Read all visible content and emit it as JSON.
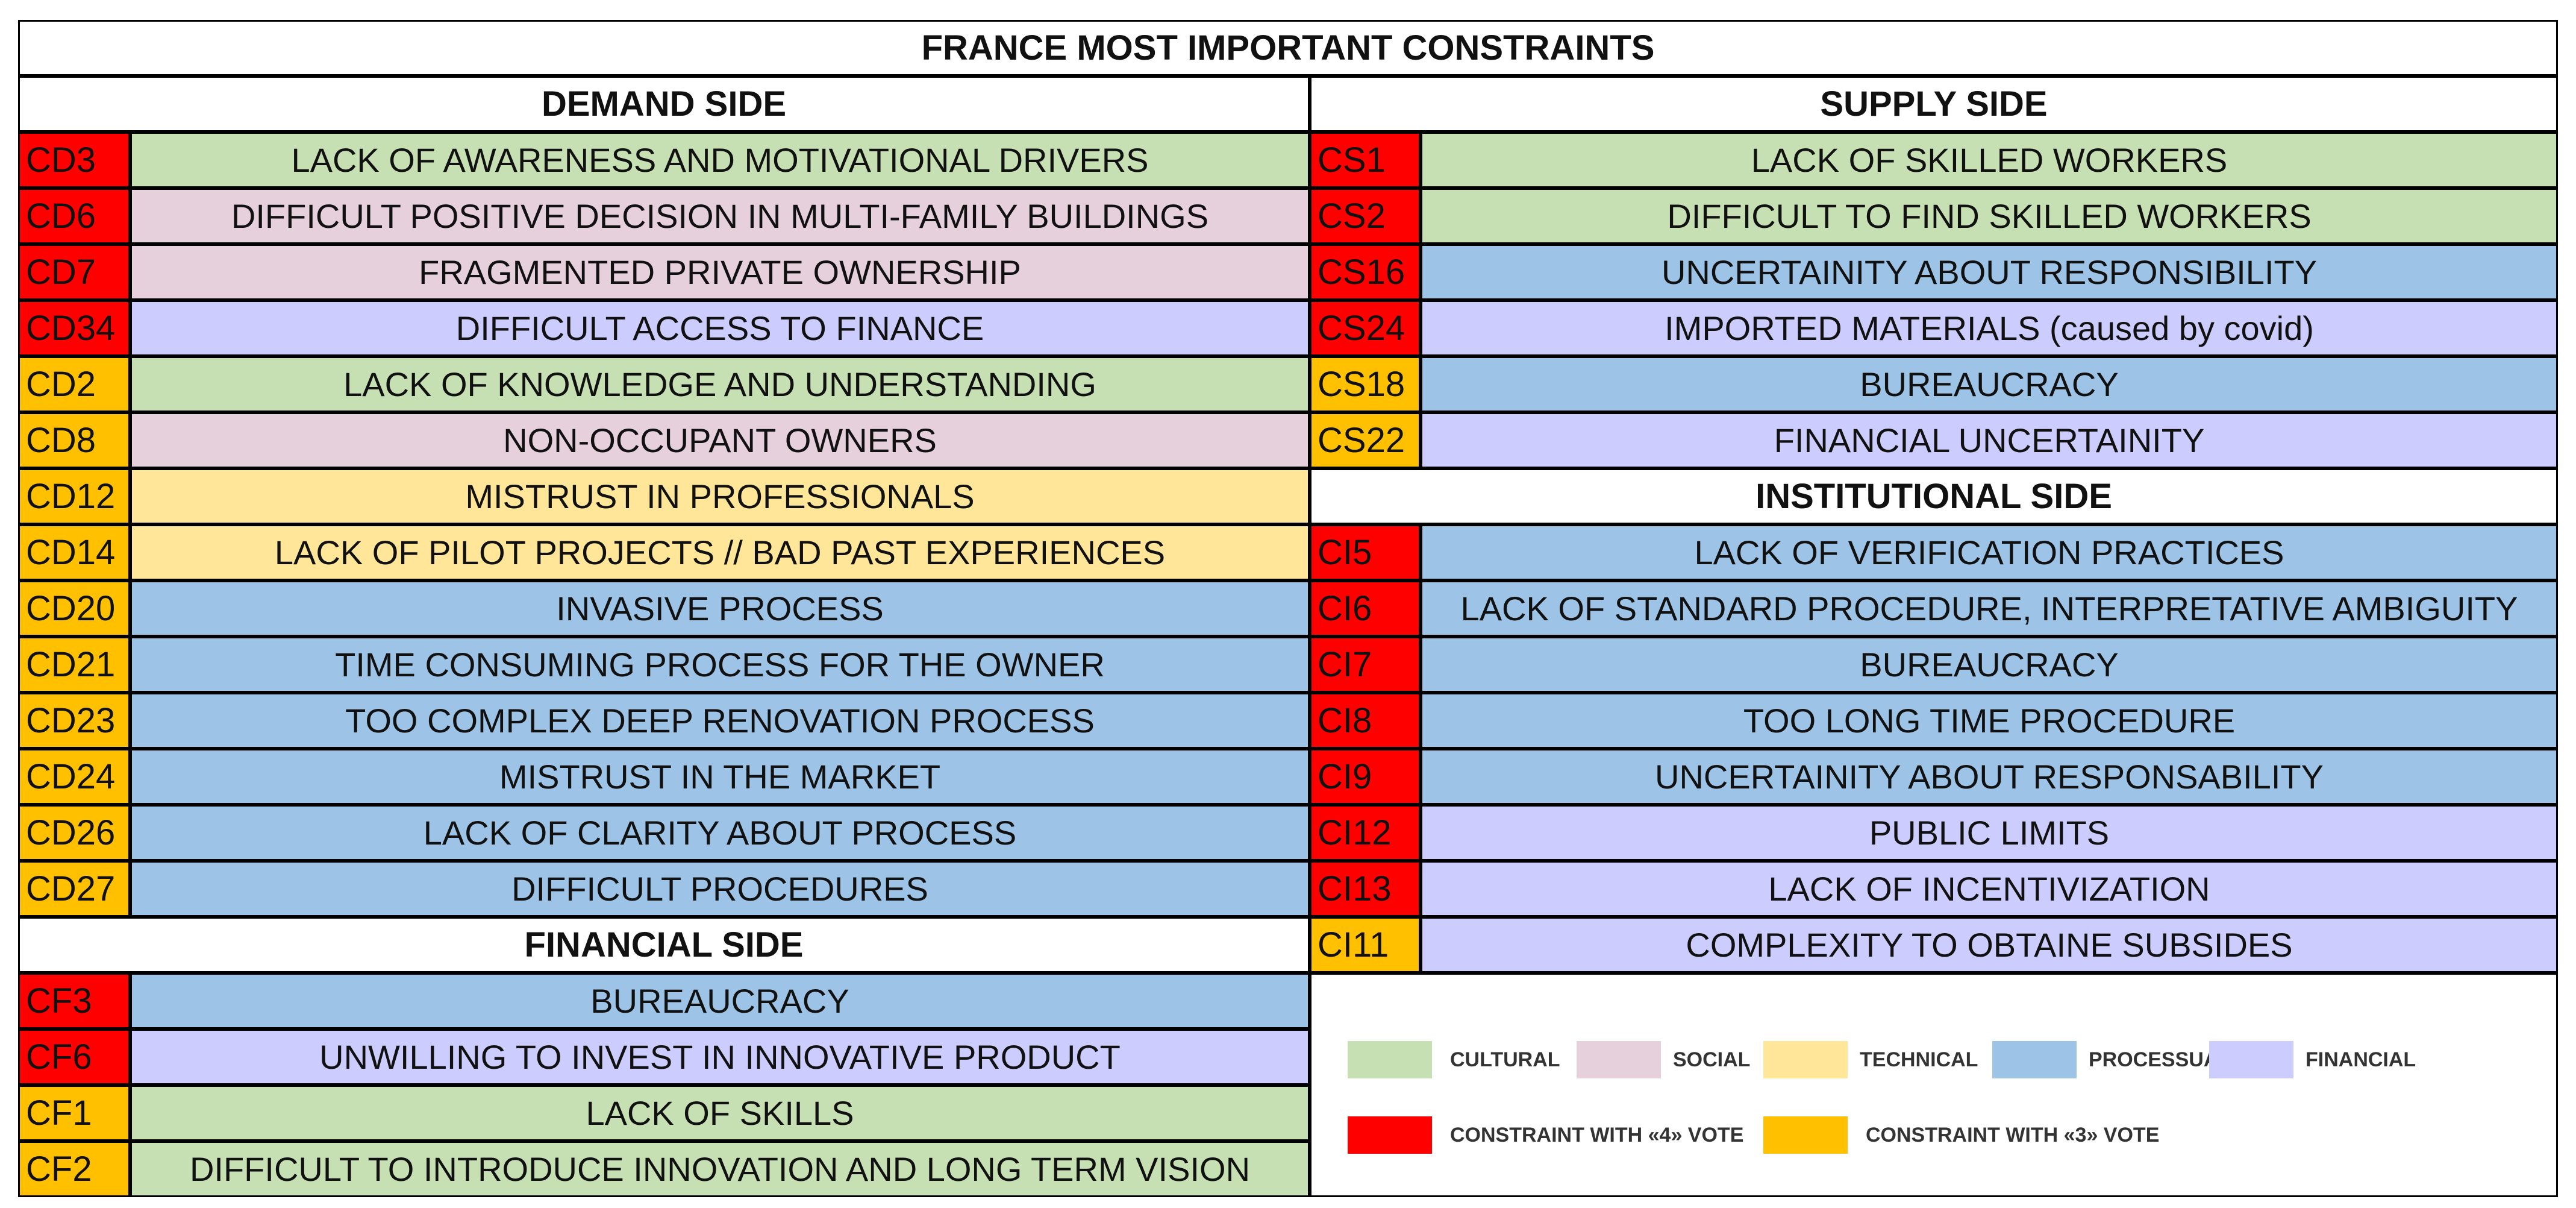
{
  "title": "FRANCE MOST IMPORTANT CONSTRAINTS",
  "colors": {
    "cultural": "#c6e0b4",
    "social": "#e6d0dc",
    "technical": "#ffe699",
    "processual": "#9dc3e6",
    "financial": "#ccccff",
    "vote4": "#ff0000",
    "vote3": "#ffc000"
  },
  "demand": {
    "header": "DEMAND SIDE",
    "rows": [
      {
        "code": "CD3",
        "text": "LACK OF AWARENESS AND MOTIVATIONAL DRIVERS",
        "category": "cultural",
        "vote": "vote4"
      },
      {
        "code": "CD6",
        "text": "DIFFICULT POSITIVE DECISION IN MULTI-FAMILY BUILDINGS",
        "category": "social",
        "vote": "vote4"
      },
      {
        "code": "CD7",
        "text": "FRAGMENTED PRIVATE OWNERSHIP",
        "category": "social",
        "vote": "vote4"
      },
      {
        "code": "CD34",
        "text": "DIFFICULT ACCESS TO FINANCE",
        "category": "financial",
        "vote": "vote4"
      },
      {
        "code": "CD2",
        "text": "LACK OF KNOWLEDGE AND UNDERSTANDING",
        "category": "cultural",
        "vote": "vote3"
      },
      {
        "code": "CD8",
        "text": "NON-OCCUPANT OWNERS",
        "category": "social",
        "vote": "vote3"
      },
      {
        "code": "CD12",
        "text": "MISTRUST IN PROFESSIONALS",
        "category": "technical",
        "vote": "vote3"
      },
      {
        "code": "CD14",
        "text": "LACK OF PILOT PROJECTS // BAD PAST EXPERIENCES",
        "category": "technical",
        "vote": "vote3"
      },
      {
        "code": "CD20",
        "text": "INVASIVE PROCESS",
        "category": "processual",
        "vote": "vote3"
      },
      {
        "code": "CD21",
        "text": "TIME CONSUMING PROCESS FOR THE OWNER",
        "category": "processual",
        "vote": "vote3"
      },
      {
        "code": "CD23",
        "text": "TOO COMPLEX DEEP RENOVATION PROCESS",
        "category": "processual",
        "vote": "vote3"
      },
      {
        "code": "CD24",
        "text": "MISTRUST IN THE MARKET",
        "category": "processual",
        "vote": "vote3"
      },
      {
        "code": "CD26",
        "text": "LACK OF CLARITY ABOUT PROCESS",
        "category": "processual",
        "vote": "vote3"
      },
      {
        "code": "CD27",
        "text": "DIFFICULT PROCEDURES",
        "category": "processual",
        "vote": "vote3"
      }
    ]
  },
  "financialSide": {
    "header": "FINANCIAL SIDE",
    "rows": [
      {
        "code": "CF3",
        "text": "BUREAUCRACY",
        "category": "processual",
        "vote": "vote4"
      },
      {
        "code": "CF6",
        "text": "UNWILLING TO INVEST IN INNOVATIVE PRODUCT",
        "category": "financial",
        "vote": "vote4"
      },
      {
        "code": "CF1",
        "text": "LACK OF SKILLS",
        "category": "cultural",
        "vote": "vote3"
      },
      {
        "code": "CF2",
        "text": "DIFFICULT TO INTRODUCE INNOVATION AND LONG TERM VISION",
        "category": "cultural",
        "vote": "vote3"
      }
    ]
  },
  "supply": {
    "header": "SUPPLY SIDE",
    "rows": [
      {
        "code": "CS1",
        "text": "LACK OF SKILLED WORKERS",
        "category": "cultural",
        "vote": "vote4"
      },
      {
        "code": "CS2",
        "text": "DIFFICULT TO FIND SKILLED WORKERS",
        "category": "cultural",
        "vote": "vote4"
      },
      {
        "code": "CS16",
        "text": "UNCERTAINITY ABOUT RESPONSIBILITY",
        "category": "processual",
        "vote": "vote4"
      },
      {
        "code": "CS24",
        "text": "IMPORTED MATERIALS (caused by covid)",
        "category": "financial",
        "vote": "vote4"
      },
      {
        "code": "CS18",
        "text": "BUREAUCRACY",
        "category": "processual",
        "vote": "vote3"
      },
      {
        "code": "CS22",
        "text": "FINANCIAL UNCERTAINITY",
        "category": "financial",
        "vote": "vote3"
      }
    ]
  },
  "institutional": {
    "header": "INSTITUTIONAL SIDE",
    "rows": [
      {
        "code": "CI5",
        "text": "LACK OF VERIFICATION PRACTICES",
        "category": "processual",
        "vote": "vote4"
      },
      {
        "code": "CI6",
        "text": "LACK OF STANDARD PROCEDURE, INTERPRETATIVE AMBIGUITY",
        "category": "processual",
        "vote": "vote4"
      },
      {
        "code": "CI7",
        "text": "BUREAUCRACY",
        "category": "processual",
        "vote": "vote4"
      },
      {
        "code": "CI8",
        "text": "TOO LONG TIME PROCEDURE",
        "category": "processual",
        "vote": "vote4"
      },
      {
        "code": "CI9",
        "text": "UNCERTAINITY ABOUT RESPONSABILITY",
        "category": "processual",
        "vote": "vote4"
      },
      {
        "code": "CI12",
        "text": "PUBLIC LIMITS",
        "category": "financial",
        "vote": "vote4"
      },
      {
        "code": "CI13",
        "text": "LACK OF INCENTIVIZATION",
        "category": "financial",
        "vote": "vote4"
      },
      {
        "code": "CI11",
        "text": "COMPLEXITY TO OBTAINE SUBSIDES",
        "category": "financial",
        "vote": "vote3"
      }
    ]
  },
  "legend": {
    "items": [
      {
        "key": "cultural",
        "label": "CULTURAL"
      },
      {
        "key": "social",
        "label": "SOCIAL"
      },
      {
        "key": "technical",
        "label": "TECHNICAL"
      },
      {
        "key": "processual",
        "label": "PROCESSUAL"
      },
      {
        "key": "financial",
        "label": "FINANCIAL"
      },
      {
        "key": "vote4",
        "label": "CONSTRAINT WITH «4» VOTE"
      },
      {
        "key": "vote3",
        "label": "CONSTRAINT WITH «3» VOTE"
      }
    ]
  }
}
